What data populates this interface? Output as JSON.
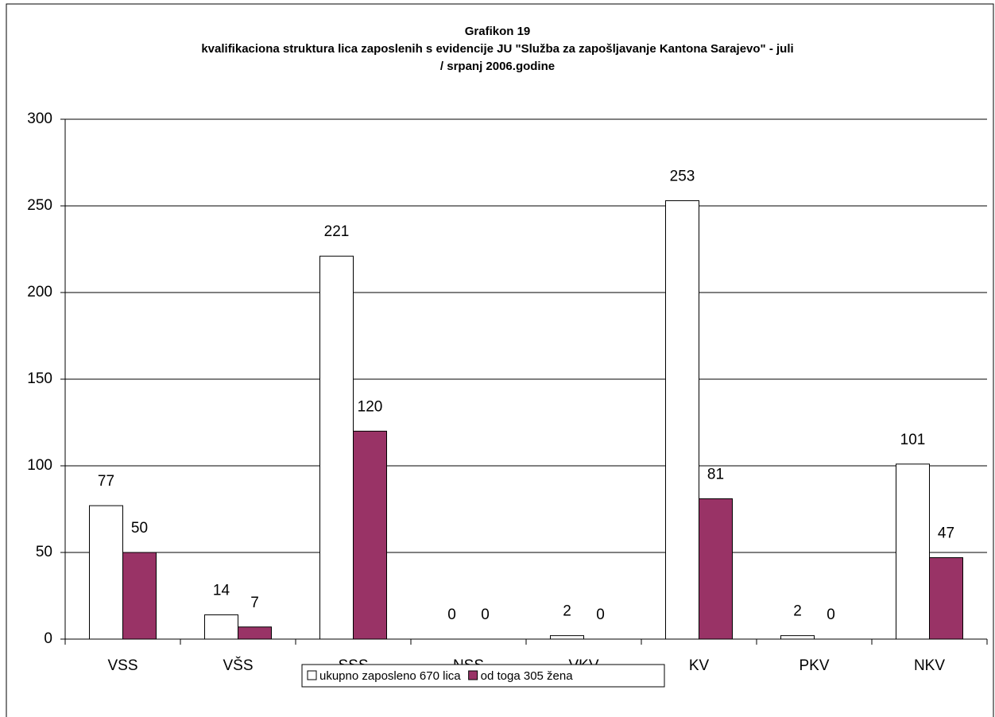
{
  "chart_data": {
    "type": "bar",
    "title": "Grafikon 19",
    "subtitle": [
      "kvalifikaciona struktura lica zaposlenih s evidencije JU \"Služba za zapošljavanje Kantona Sarajevo\" -  juli",
      "/ srpanj 2006.godine"
    ],
    "categories": [
      "VSS",
      "VŠS",
      "SSS",
      "NSS",
      "VKV",
      "KV",
      "PKV",
      "NKV"
    ],
    "series": [
      {
        "name": "ukupno zaposleno 670 lica",
        "color": "#ffffff",
        "values": [
          77,
          14,
          221,
          0,
          2,
          253,
          2,
          101
        ]
      },
      {
        "name": "od toga 305 žena",
        "color": "#993366",
        "values": [
          50,
          7,
          120,
          0,
          0,
          81,
          0,
          47
        ]
      }
    ],
    "ylim": [
      0,
      300
    ],
    "yticks": [
      0,
      50,
      100,
      150,
      200,
      250,
      300
    ],
    "grid": true,
    "legend": "bottom"
  }
}
